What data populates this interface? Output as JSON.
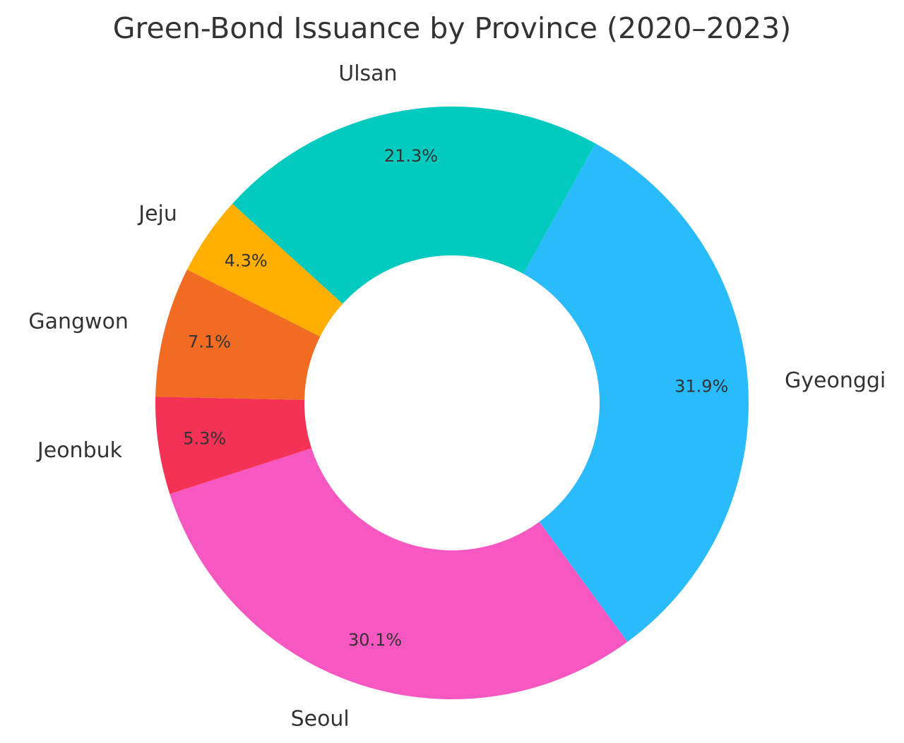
{
  "chart_data": {
    "type": "pie",
    "variant": "donut",
    "title": "Green-Bond Issuance by Province (2020–2023)",
    "slices": [
      {
        "label": "Gyeonggi",
        "value": 31.9,
        "pct_label": "31.9%",
        "color": "#29BBFB"
      },
      {
        "label": "Seoul",
        "value": 30.1,
        "pct_label": "30.1%",
        "color": "#F757C0"
      },
      {
        "label": "Jeonbuk",
        "value": 5.3,
        "pct_label": "5.3%",
        "color": "#F43256"
      },
      {
        "label": "Gangwon",
        "value": 7.1,
        "pct_label": "7.1%",
        "color": "#F26B22"
      },
      {
        "label": "Jeju",
        "value": 4.3,
        "pct_label": "4.3%",
        "color": "#FEAF01"
      },
      {
        "label": "Ulsan",
        "value": 21.3,
        "pct_label": "21.3%",
        "color": "#02CABF"
      }
    ],
    "start_direction": "clockwise from upper-right (Gyeonggi first)",
    "legend": "none"
  }
}
